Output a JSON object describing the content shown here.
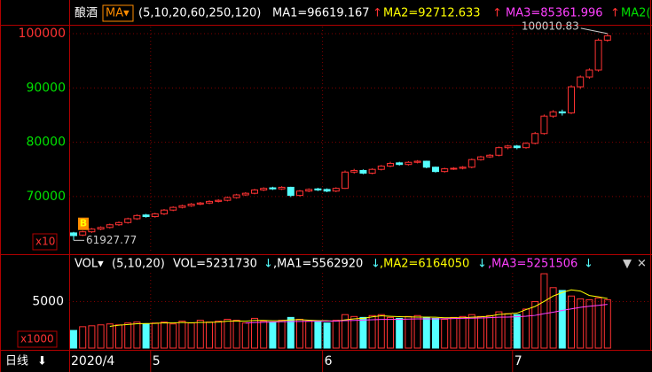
{
  "header": {
    "name": "酿酒",
    "ma_button": "MA▾",
    "ma_params": "(5,10,20,60,250,120)",
    "ma_readouts": [
      {
        "text": "MA1=96619.167",
        "arrow": "↑",
        "color": "#ffffff"
      },
      {
        "text": "MA2=92712.633",
        "arrow": "↑",
        "color": "#ffff00"
      },
      {
        "text": "MA3=85361.996",
        "arrow": "↑",
        "color": "#ff40ff"
      }
    ],
    "overflow": "MA2("
  },
  "chart_data": [
    {
      "type": "candlestick",
      "categories": [
        "2020/4",
        null,
        null,
        null,
        null,
        null,
        null,
        null,
        null,
        "5",
        null,
        null,
        null,
        null,
        null,
        null,
        null,
        null,
        null,
        null,
        null,
        null,
        null,
        null,
        null,
        null,
        null,
        null,
        "6",
        null,
        null,
        null,
        null,
        null,
        null,
        null,
        null,
        null,
        null,
        null,
        null,
        null,
        null,
        null,
        null,
        null,
        null,
        null,
        null,
        "7",
        null,
        null,
        null,
        null,
        null,
        null,
        null,
        null,
        null,
        null
      ],
      "open": [
        63300,
        62900,
        63500,
        64000,
        64300,
        64800,
        65200,
        65900,
        66600,
        66300,
        66800,
        67500,
        68000,
        68300,
        68600,
        68800,
        69100,
        69300,
        69800,
        70300,
        70600,
        71200,
        71600,
        71400,
        71700,
        70200,
        71000,
        71400,
        71300,
        71000,
        71500,
        74500,
        74800,
        74300,
        75000,
        75600,
        76200,
        75900,
        76300,
        76500,
        75400,
        74600,
        75100,
        75200,
        75400,
        76800,
        77300,
        77600,
        79000,
        79300,
        79000,
        79800,
        81600,
        84800,
        85600,
        85400,
        90200,
        92000,
        93300,
        98800
      ],
      "high": [
        63500,
        63700,
        64200,
        64500,
        65000,
        65400,
        66100,
        66700,
        66800,
        67000,
        67700,
        68200,
        68500,
        68800,
        69000,
        69300,
        69500,
        70000,
        70500,
        70800,
        71400,
        71700,
        71800,
        71900,
        71800,
        71200,
        71500,
        71600,
        71500,
        71700,
        74800,
        75100,
        75000,
        75200,
        75800,
        76400,
        76400,
        76500,
        76700,
        76600,
        75500,
        75300,
        75400,
        75600,
        77000,
        77500,
        77800,
        79200,
        79500,
        79500,
        80000,
        81900,
        85100,
        85900,
        86000,
        90500,
        92300,
        93600,
        99100,
        100010.83
      ],
      "low": [
        61927.77,
        62700,
        63300,
        63800,
        64100,
        64600,
        65000,
        65700,
        66100,
        66100,
        66600,
        67300,
        67800,
        68100,
        68400,
        68600,
        68900,
        69100,
        69600,
        70100,
        70400,
        71000,
        71200,
        71200,
        69900,
        70000,
        70800,
        71000,
        70800,
        70800,
        71400,
        74200,
        74100,
        74100,
        74800,
        75400,
        75700,
        75700,
        76100,
        75200,
        74400,
        74400,
        74900,
        75000,
        75200,
        76600,
        77100,
        77400,
        78700,
        78700,
        78800,
        79600,
        81400,
        84500,
        84900,
        85200,
        89800,
        91700,
        93000,
        98500
      ],
      "close": [
        62800,
        63500,
        64000,
        64300,
        64800,
        65200,
        65900,
        66500,
        66300,
        66800,
        67500,
        68000,
        68300,
        68600,
        68800,
        69100,
        69300,
        69800,
        70300,
        70600,
        71200,
        71500,
        71400,
        71700,
        70200,
        71000,
        71300,
        71200,
        71000,
        71500,
        74500,
        74800,
        74300,
        75000,
        75600,
        76100,
        75900,
        76300,
        76500,
        75400,
        74600,
        75100,
        75200,
        75400,
        76800,
        77300,
        77600,
        79000,
        79300,
        79000,
        79800,
        81600,
        84800,
        85600,
        85400,
        90200,
        92000,
        93300,
        98800,
        99600
      ],
      "ylim": [
        59700,
        101300
      ],
      "yticks": [
        70000,
        80000,
        90000,
        100000
      ],
      "ytick_colors": [
        "#00e000",
        "#00e000",
        "#00e000",
        "#ff3232"
      ],
      "up_color": "#ff3232",
      "down_color": "#54ffff",
      "grid": true,
      "unit_label": "x10",
      "signal_marker": "B"
    },
    {
      "type": "bar",
      "values": [
        1900,
        2300,
        2400,
        2500,
        2600,
        2500,
        2700,
        2800,
        2600,
        2700,
        2800,
        2600,
        2900,
        2700,
        3000,
        2800,
        2900,
        3100,
        3000,
        2700,
        3200,
        2900,
        2800,
        3000,
        3300,
        3100,
        2900,
        2800,
        2700,
        3000,
        3600,
        3400,
        3300,
        3500,
        3600,
        3300,
        3200,
        3400,
        3500,
        3300,
        3200,
        3100,
        3300,
        3400,
        3600,
        3400,
        3500,
        3900,
        3700,
        3600,
        4200,
        5000,
        8000,
        6500,
        6200,
        5600,
        5300,
        5200,
        5400,
        5200
      ],
      "ylim": [
        0,
        8100
      ],
      "yticks": [
        5000
      ],
      "grid": true,
      "unit_label": "x1000",
      "lines": [
        {
          "color": "#ffff00",
          "values": [
            null,
            null,
            null,
            null,
            2340,
            2460,
            2540,
            2620,
            2640,
            2660,
            2720,
            2700,
            2760,
            2720,
            2760,
            2760,
            2800,
            2900,
            2920,
            2900,
            2980,
            2980,
            2940,
            2960,
            3040,
            3060,
            3000,
            2960,
            2940,
            2900,
            3040,
            3140,
            3200,
            3360,
            3480,
            3420,
            3380,
            3360,
            3340,
            3340,
            3320,
            3260,
            3260,
            3260,
            3320,
            3360,
            3440,
            3620,
            3680,
            3760,
            4140,
            4480,
            5020,
            5600,
            5980,
            6260,
            6140,
            5660,
            5520,
            5340
          ]
        },
        {
          "color": "#ff40ff",
          "values": [
            null,
            null,
            null,
            null,
            null,
            null,
            null,
            null,
            null,
            null,
            null,
            null,
            null,
            null,
            null,
            null,
            null,
            null,
            null,
            2690,
            2750,
            2780,
            2810,
            2830,
            2860,
            2870,
            2880,
            2890,
            2890,
            2910,
            2950,
            2980,
            3010,
            3050,
            3080,
            3090,
            3100,
            3120,
            3140,
            3150,
            3150,
            3160,
            3180,
            3200,
            3220,
            3240,
            3270,
            3320,
            3340,
            3370,
            3430,
            3520,
            3700,
            3860,
            4050,
            4220,
            4380,
            4500,
            4600,
            4700
          ]
        }
      ],
      "indicator": "VOL▾",
      "params": "(5,10,20)",
      "readouts": [
        {
          "text": "VOL=5231730",
          "arrow": "↓",
          "color": "#ffffff"
        },
        {
          "text": ",MA1=5562920",
          "arrow": "↓",
          "color": "#ffffff"
        },
        {
          "text": ",MA2=6164050",
          "arrow": "↓",
          "color": "#ffff00"
        },
        {
          "text": ",MA3=5251506",
          "arrow": "↓",
          "color": "#ff40ff"
        }
      ],
      "controls": [
        "▼",
        "✕"
      ]
    }
  ],
  "footer": {
    "period": "日线",
    "period_arrow": "⬇"
  }
}
